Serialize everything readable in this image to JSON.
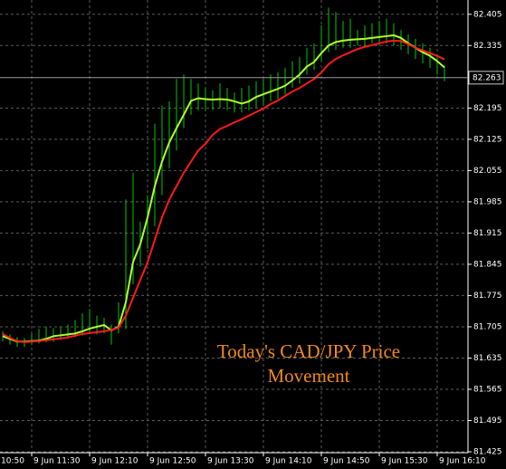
{
  "chart_data": {
    "type": "hilo",
    "categories": [
      "10:50",
      null,
      null,
      null,
      null,
      null,
      null,
      null,
      "9 Jun 11:30",
      null,
      null,
      null,
      null,
      null,
      null,
      null,
      "9 Jun 12:10",
      null,
      null,
      null,
      null,
      null,
      null,
      null,
      "9 Jun 12:50",
      null,
      null,
      null,
      null,
      null,
      null,
      null,
      "9 Jun 13:30",
      null,
      null,
      null,
      null,
      null,
      null,
      null,
      "9 Jun 14:10",
      null,
      null,
      null,
      null,
      null,
      null,
      null,
      "9 Jun 14:50",
      null,
      null,
      null,
      null,
      null,
      null,
      null,
      "9 Jun 15:30",
      null,
      null,
      null,
      null,
      null,
      null,
      null,
      "9 Jun 16:10",
      null
    ],
    "high": [
      null,
      null,
      null,
      null,
      81.695,
      81.688,
      81.682,
      81.68,
      81.69,
      81.7,
      81.705,
      81.702,
      81.706,
      81.71,
      81.72,
      81.735,
      81.745,
      81.73,
      81.725,
      81.71,
      81.76,
      81.99,
      82.05,
      81.94,
      82.0,
      82.16,
      82.2,
      82.21,
      82.26,
      82.27,
      82.26,
      82.25,
      82.24,
      82.235,
      82.25,
      82.24,
      82.23,
      82.24,
      82.245,
      82.255,
      82.26,
      82.27,
      82.275,
      82.285,
      82.3,
      82.31,
      82.33,
      82.34,
      82.38,
      82.42,
      82.41,
      82.39,
      82.395,
      82.37,
      82.38,
      82.385,
      82.39,
      82.395,
      82.385,
      82.37,
      82.36,
      82.35,
      82.34,
      82.33,
      82.31,
      82.29
    ],
    "low": [
      null,
      null,
      null,
      null,
      81.672,
      81.665,
      81.66,
      81.66,
      81.665,
      81.668,
      81.67,
      81.672,
      81.676,
      81.68,
      81.682,
      81.685,
      81.69,
      81.688,
      81.69,
      81.665,
      81.69,
      81.7,
      81.8,
      81.84,
      81.88,
      81.93,
      82.0,
      82.06,
      82.1,
      82.15,
      82.18,
      82.19,
      82.19,
      82.19,
      82.195,
      82.19,
      82.185,
      82.185,
      82.19,
      82.195,
      82.2,
      82.21,
      82.215,
      82.225,
      82.24,
      82.25,
      82.27,
      82.28,
      82.3,
      82.32,
      82.325,
      82.33,
      82.33,
      82.335,
      82.335,
      82.34,
      82.34,
      82.34,
      82.335,
      82.325,
      82.315,
      82.305,
      82.295,
      82.285,
      82.27,
      82.255
    ],
    "bar_color": "#00c800",
    "lines": [
      {
        "color": "#adff2f",
        "values": [
          null,
          null,
          null,
          null,
          81.684,
          81.678,
          81.672,
          81.672,
          81.673,
          81.674,
          81.678,
          81.684,
          81.686,
          81.688,
          81.69,
          81.695,
          81.701,
          81.705,
          81.709,
          81.697,
          81.705,
          81.76,
          81.85,
          81.89,
          81.95,
          82.02,
          82.075,
          82.118,
          82.15,
          82.18,
          82.211,
          82.217,
          82.215,
          82.214,
          82.215,
          82.214,
          82.21,
          82.205,
          82.21,
          82.22,
          82.226,
          82.232,
          82.238,
          82.245,
          82.257,
          82.27,
          82.288,
          82.298,
          82.318,
          82.335,
          82.343,
          82.346,
          82.348,
          82.349,
          82.35,
          82.352,
          82.354,
          82.356,
          82.358,
          82.352,
          82.34,
          82.33,
          82.32,
          82.312,
          82.3,
          82.286
        ]
      },
      {
        "color": "#ff1a1a",
        "values": [
          null,
          null,
          null,
          null,
          81.689,
          81.68,
          81.673,
          81.671,
          81.672,
          81.673,
          81.675,
          81.677,
          81.679,
          81.681,
          81.685,
          81.689,
          81.691,
          81.693,
          81.695,
          81.698,
          81.703,
          81.73,
          81.77,
          81.81,
          81.849,
          81.9,
          81.95,
          81.99,
          82.02,
          82.05,
          82.075,
          82.1,
          82.115,
          82.135,
          82.148,
          82.155,
          82.163,
          82.17,
          82.178,
          82.186,
          82.194,
          82.204,
          82.212,
          82.222,
          82.232,
          82.24,
          82.25,
          82.26,
          82.275,
          82.293,
          82.305,
          82.313,
          82.32,
          82.327,
          82.332,
          82.336,
          82.34,
          82.344,
          82.346,
          82.345,
          82.338,
          82.33,
          82.324,
          82.318,
          82.312,
          82.304
        ]
      }
    ],
    "ylim": [
      81.423,
      82.437
    ],
    "yticks": [
      82.405,
      82.335,
      82.195,
      82.125,
      82.055,
      81.985,
      81.915,
      81.845,
      81.775,
      81.705,
      81.635,
      81.565,
      81.495,
      81.425
    ],
    "current_price": 82.263,
    "grid": true,
    "annotation": [
      "Today's CAD/JPY Price",
      "Movement"
    ],
    "annotation_color": "#f08a1c"
  }
}
